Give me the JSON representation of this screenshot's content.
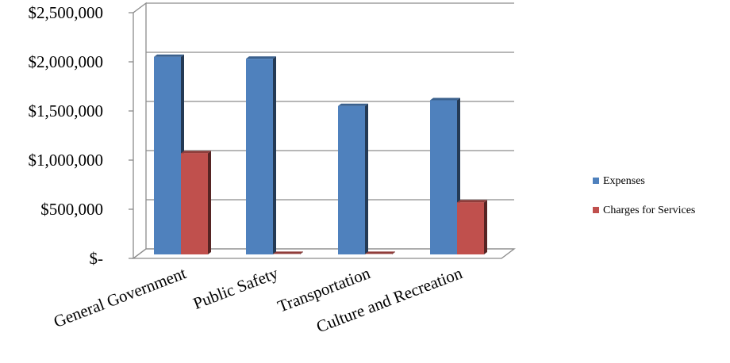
{
  "chart_data": {
    "type": "bar",
    "categories": [
      "General Government",
      "Public Safety",
      "Transportation",
      "Culture and Recreation"
    ],
    "series": [
      {
        "name": "Expenses",
        "color": "#4f81bd",
        "values": [
          2050000,
          2030000,
          1540000,
          1600000
        ]
      },
      {
        "name": "Charges for Services",
        "color": "#c0504d",
        "values": [
          1050000,
          5000,
          5000,
          540000
        ]
      }
    ],
    "ylim": [
      0,
      2500000
    ],
    "yticks": [
      0,
      500000,
      1000000,
      1500000,
      2000000,
      2500000
    ],
    "ytick_labels": [
      "$-",
      "$500,000",
      "$1,000,000",
      "$1,500,000",
      "$2,000,000",
      "$2,500,000"
    ],
    "title": "",
    "xlabel": "",
    "ylabel": "",
    "grid": true,
    "legend": "right",
    "style": "3d-clustered-column"
  }
}
